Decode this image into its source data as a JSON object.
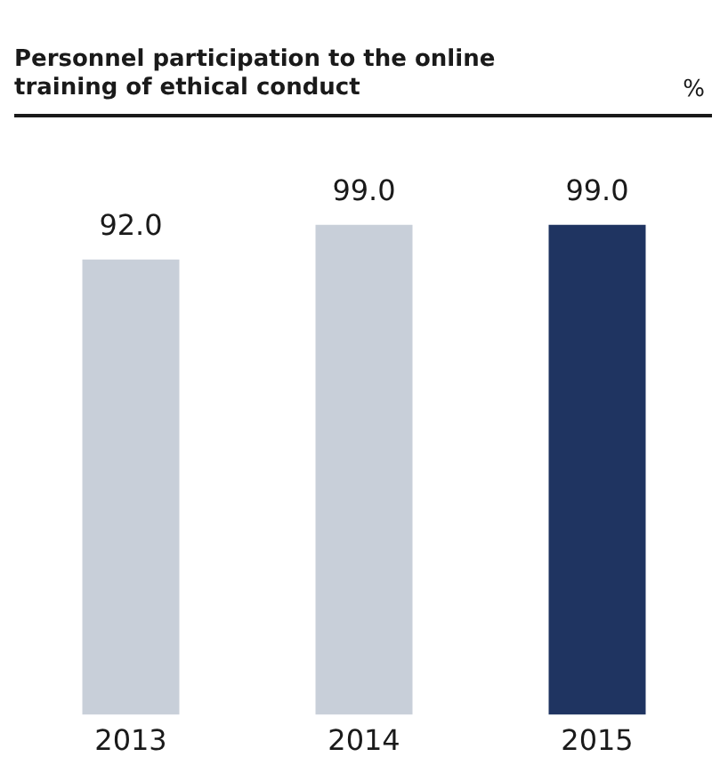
{
  "chart_data": {
    "type": "bar",
    "title": "Personnel participation to the online training of ethical conduct",
    "annotations": [
      "%"
    ],
    "categories": [
      "2013",
      "2014",
      "2015"
    ],
    "values": [
      92.0,
      99.0,
      99.0
    ],
    "colors": [
      "#c8cfd9",
      "#c8cfd9",
      "#1f3461"
    ],
    "value_labels": [
      "92.0",
      "99.0",
      "99.0"
    ],
    "tick_labels": "x",
    "grid": false,
    "legend": false
  }
}
